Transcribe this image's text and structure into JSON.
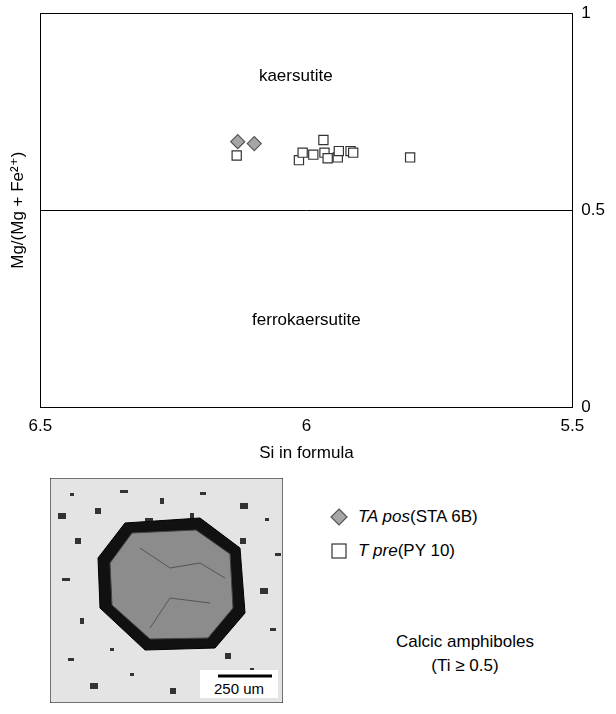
{
  "chart_data": {
    "type": "scatter",
    "x_label": "Si in formula",
    "y_label": "Mg/(Mg + Fe²⁺)",
    "xlim": [
      6.5,
      5.5
    ],
    "xticks": [
      6.5,
      6,
      5.5
    ],
    "ylim": [
      0,
      1
    ],
    "yticks": [
      0,
      0.5,
      1
    ],
    "grid": false,
    "legend": "bottom",
    "series": [
      {
        "name": "TA pos (STA 6B)",
        "color": "#a6a6a6",
        "marker": "diamond",
        "x": [
          6.129,
          6.098
        ],
        "values": [
          0.674,
          0.669
        ]
      },
      {
        "name": "T pre (PY 10)",
        "color": "#ffffff",
        "marker": "square",
        "x": [
          6.131,
          6.014,
          6.007,
          5.968,
          5.966,
          5.987,
          5.941,
          5.939,
          5.917,
          5.912,
          5.96,
          5.805
        ],
        "values": [
          0.639,
          0.627,
          0.646,
          0.678,
          0.646,
          0.641,
          0.634,
          0.65,
          0.65,
          0.646,
          0.632,
          0.634
        ]
      }
    ],
    "lines": [
      {
        "y": 0.5
      }
    ],
    "annotations": [
      {
        "text": "kaersutite",
        "x": 6.02,
        "y": 0.84
      },
      {
        "text": "ferrokaersutite",
        "x": 6.0,
        "y": 0.22
      }
    ],
    "note": "Calcic amphiboles (Ti ≥ 0.5)",
    "inset": {
      "scale_label": "250 um"
    }
  }
}
